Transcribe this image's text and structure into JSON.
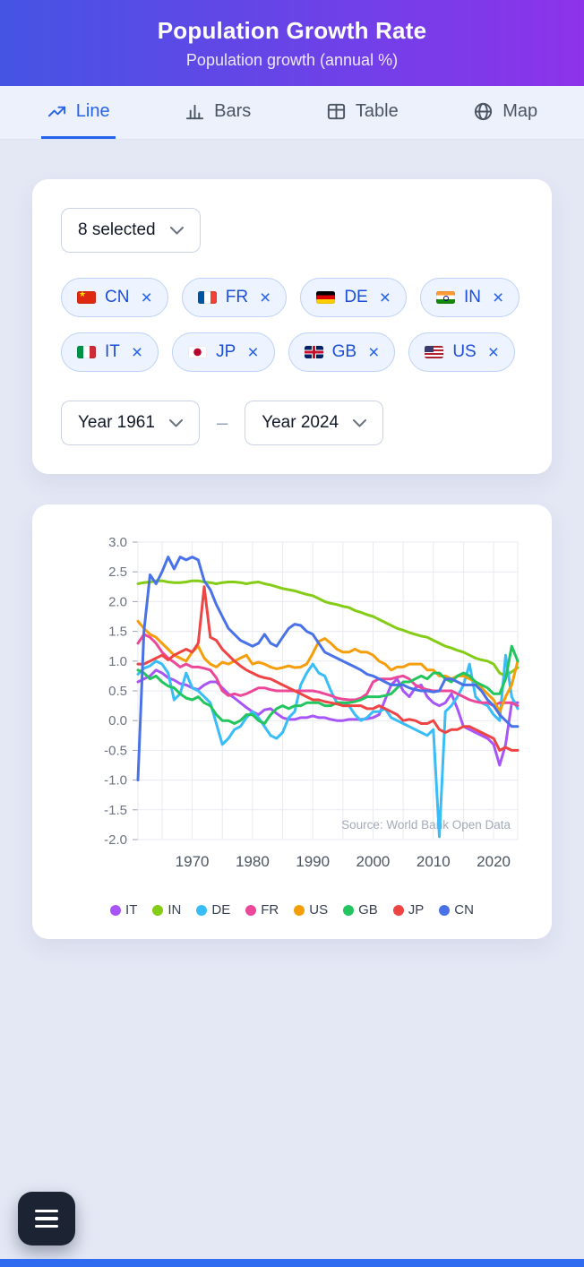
{
  "header": {
    "title": "Population Growth Rate",
    "subtitle": "Population growth (annual %)"
  },
  "tabs": [
    {
      "label": "Line",
      "active": true
    },
    {
      "label": "Bars",
      "active": false
    },
    {
      "label": "Table",
      "active": false
    },
    {
      "label": "Map",
      "active": false
    }
  ],
  "filters": {
    "selected_summary": "8 selected",
    "remove_symbol": "×",
    "range_separator": "–",
    "year_from": "Year 1961",
    "year_to": "Year 2024",
    "chips": [
      {
        "code": "CN"
      },
      {
        "code": "FR"
      },
      {
        "code": "DE"
      },
      {
        "code": "IN"
      },
      {
        "code": "IT"
      },
      {
        "code": "JP"
      },
      {
        "code": "GB"
      },
      {
        "code": "US"
      }
    ]
  },
  "chart_data": {
    "type": "line",
    "title": "Population growth (annual %)",
    "source": "Source: World Bank Open Data",
    "grid": true,
    "legend_position": "bottom",
    "ylim": [
      -2.0,
      3.0
    ],
    "y_ticks": [
      3.0,
      2.5,
      2.0,
      1.5,
      1.0,
      0.5,
      0.0,
      -0.5,
      -1.0,
      -1.5,
      -2.0
    ],
    "x_label_ticks": [
      1970,
      1980,
      1990,
      2000,
      2010,
      2020
    ],
    "x": [
      1961,
      1962,
      1963,
      1964,
      1965,
      1966,
      1967,
      1968,
      1969,
      1970,
      1971,
      1972,
      1973,
      1974,
      1975,
      1976,
      1977,
      1978,
      1979,
      1980,
      1981,
      1982,
      1983,
      1984,
      1985,
      1986,
      1987,
      1988,
      1989,
      1990,
      1991,
      1992,
      1993,
      1994,
      1995,
      1996,
      1997,
      1998,
      1999,
      2000,
      2001,
      2002,
      2003,
      2004,
      2005,
      2006,
      2007,
      2008,
      2009,
      2010,
      2011,
      2012,
      2013,
      2014,
      2015,
      2016,
      2017,
      2018,
      2019,
      2020,
      2021,
      2022,
      2023,
      2024
    ],
    "series": [
      {
        "name": "IT",
        "color": "#a855f7",
        "values": [
          0.65,
          0.7,
          0.75,
          0.85,
          0.8,
          0.72,
          0.68,
          0.62,
          0.6,
          0.55,
          0.52,
          0.6,
          0.65,
          0.65,
          0.55,
          0.45,
          0.38,
          0.3,
          0.22,
          0.15,
          0.1,
          0.18,
          0.2,
          0.12,
          0.05,
          0.02,
          0.02,
          0.05,
          0.05,
          0.08,
          0.05,
          0.05,
          0.02,
          0.0,
          0.0,
          0.02,
          0.02,
          0.02,
          0.03,
          0.05,
          0.1,
          0.35,
          0.6,
          0.7,
          0.5,
          0.4,
          0.55,
          0.6,
          0.4,
          0.3,
          0.25,
          0.3,
          0.45,
          0.2,
          -0.1,
          -0.15,
          -0.2,
          -0.25,
          -0.3,
          -0.4,
          -0.75,
          -0.4,
          0.3,
          0.3
        ]
      },
      {
        "name": "IN",
        "color": "#84cc16",
        "values": [
          2.3,
          2.32,
          2.33,
          2.35,
          2.35,
          2.33,
          2.32,
          2.32,
          2.33,
          2.35,
          2.35,
          2.33,
          2.32,
          2.3,
          2.32,
          2.33,
          2.33,
          2.32,
          2.3,
          2.32,
          2.33,
          2.3,
          2.28,
          2.25,
          2.22,
          2.2,
          2.18,
          2.15,
          2.12,
          2.1,
          2.05,
          2.0,
          1.97,
          1.95,
          1.92,
          1.9,
          1.85,
          1.82,
          1.78,
          1.75,
          1.7,
          1.65,
          1.6,
          1.55,
          1.52,
          1.48,
          1.45,
          1.42,
          1.4,
          1.35,
          1.3,
          1.25,
          1.22,
          1.18,
          1.15,
          1.1,
          1.05,
          1.02,
          1.0,
          0.95,
          0.8,
          0.75,
          0.82,
          0.89
        ]
      },
      {
        "name": "DE",
        "color": "#38bdf8",
        "values": [
          0.78,
          0.88,
          0.92,
          1.0,
          0.95,
          0.8,
          0.35,
          0.45,
          0.8,
          0.55,
          0.5,
          0.4,
          0.3,
          -0.05,
          -0.4,
          -0.3,
          -0.15,
          -0.1,
          0.05,
          0.15,
          0.05,
          -0.1,
          -0.25,
          -0.3,
          -0.2,
          0.05,
          0.15,
          0.6,
          0.8,
          0.95,
          0.8,
          0.75,
          0.5,
          0.3,
          0.3,
          0.25,
          0.1,
          0.0,
          0.05,
          0.15,
          0.15,
          0.2,
          0.05,
          0.0,
          -0.05,
          -0.1,
          -0.15,
          -0.2,
          -0.25,
          -0.15,
          -1.95,
          0.15,
          0.25,
          0.4,
          0.6,
          0.95,
          0.4,
          0.3,
          0.25,
          0.1,
          0.0,
          1.1,
          0.4,
          0.2
        ]
      },
      {
        "name": "FR",
        "color": "#ec4899",
        "values": [
          1.3,
          1.45,
          1.4,
          1.3,
          1.15,
          1.05,
          0.98,
          0.9,
          0.95,
          0.9,
          0.9,
          0.88,
          0.85,
          0.72,
          0.5,
          0.42,
          0.45,
          0.42,
          0.45,
          0.5,
          0.55,
          0.55,
          0.52,
          0.5,
          0.5,
          0.5,
          0.5,
          0.5,
          0.5,
          0.5,
          0.48,
          0.45,
          0.42,
          0.38,
          0.36,
          0.35,
          0.35,
          0.38,
          0.45,
          0.65,
          0.7,
          0.7,
          0.7,
          0.73,
          0.75,
          0.7,
          0.6,
          0.55,
          0.52,
          0.5,
          0.5,
          0.5,
          0.5,
          0.45,
          0.4,
          0.35,
          0.32,
          0.3,
          0.3,
          0.25,
          0.3,
          0.3,
          0.3,
          0.25
        ]
      },
      {
        "name": "US",
        "color": "#f59e0b",
        "values": [
          1.67,
          1.55,
          1.45,
          1.4,
          1.3,
          1.2,
          1.1,
          1.05,
          1.0,
          1.15,
          1.25,
          1.05,
          0.95,
          0.9,
          0.98,
          0.95,
          1.0,
          1.05,
          1.1,
          0.95,
          0.98,
          0.95,
          0.9,
          0.87,
          0.89,
          0.92,
          0.89,
          0.9,
          0.95,
          1.13,
          1.33,
          1.38,
          1.3,
          1.2,
          1.15,
          1.15,
          1.2,
          1.15,
          1.15,
          1.1,
          1.0,
          0.95,
          0.85,
          0.9,
          0.9,
          0.95,
          0.95,
          0.95,
          0.85,
          0.85,
          0.75,
          0.75,
          0.7,
          0.75,
          0.75,
          0.7,
          0.65,
          0.55,
          0.45,
          0.35,
          0.15,
          0.4,
          0.6,
          1.0
        ]
      },
      {
        "name": "GB",
        "color": "#22c55e",
        "values": [
          0.85,
          0.8,
          0.7,
          0.75,
          0.65,
          0.58,
          0.55,
          0.45,
          0.38,
          0.35,
          0.4,
          0.3,
          0.25,
          0.1,
          0.0,
          0.0,
          -0.05,
          0.0,
          0.1,
          0.1,
          0.0,
          -0.05,
          0.1,
          0.2,
          0.25,
          0.2,
          0.25,
          0.25,
          0.3,
          0.3,
          0.3,
          0.25,
          0.25,
          0.3,
          0.3,
          0.3,
          0.32,
          0.35,
          0.4,
          0.4,
          0.4,
          0.42,
          0.45,
          0.55,
          0.65,
          0.65,
          0.7,
          0.75,
          0.7,
          0.8,
          0.8,
          0.7,
          0.65,
          0.75,
          0.8,
          0.75,
          0.65,
          0.6,
          0.55,
          0.45,
          0.45,
          0.7,
          1.25,
          1.0
        ]
      },
      {
        "name": "JP",
        "color": "#ef4444",
        "values": [
          0.95,
          0.95,
          1.0,
          1.05,
          1.1,
          1.02,
          1.1,
          1.15,
          1.2,
          1.15,
          1.3,
          2.25,
          1.4,
          1.35,
          1.2,
          1.1,
          1.0,
          0.92,
          0.85,
          0.8,
          0.75,
          0.72,
          0.7,
          0.65,
          0.6,
          0.55,
          0.5,
          0.45,
          0.4,
          0.35,
          0.35,
          0.32,
          0.3,
          0.28,
          0.25,
          0.25,
          0.25,
          0.25,
          0.2,
          0.2,
          0.25,
          0.2,
          0.15,
          0.1,
          0.0,
          0.02,
          0.0,
          -0.05,
          -0.05,
          0.0,
          -0.15,
          -0.2,
          -0.15,
          -0.15,
          -0.1,
          -0.1,
          -0.15,
          -0.2,
          -0.25,
          -0.3,
          -0.5,
          -0.45,
          -0.5,
          -0.5
        ]
      },
      {
        "name": "CN",
        "color": "#4a72e8",
        "values": [
          -1.0,
          1.5,
          2.45,
          2.3,
          2.5,
          2.75,
          2.55,
          2.75,
          2.7,
          2.75,
          2.7,
          2.35,
          2.2,
          1.95,
          1.75,
          1.55,
          1.45,
          1.35,
          1.3,
          1.25,
          1.3,
          1.45,
          1.3,
          1.25,
          1.4,
          1.55,
          1.62,
          1.6,
          1.5,
          1.45,
          1.3,
          1.15,
          1.1,
          1.05,
          1.0,
          0.95,
          0.9,
          0.85,
          0.78,
          0.75,
          0.7,
          0.65,
          0.6,
          0.6,
          0.6,
          0.55,
          0.52,
          0.5,
          0.5,
          0.48,
          0.5,
          0.7,
          0.7,
          0.65,
          0.6,
          0.6,
          0.6,
          0.5,
          0.35,
          0.25,
          0.1,
          0.0,
          -0.1,
          -0.1
        ]
      }
    ]
  }
}
